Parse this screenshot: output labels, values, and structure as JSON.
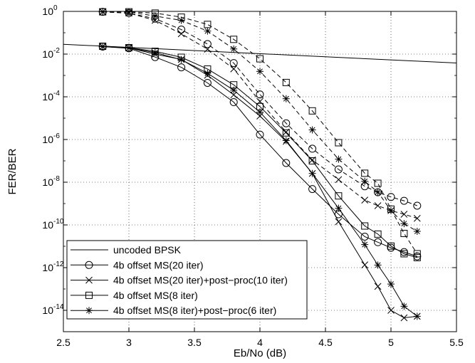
{
  "chart_data": {
    "type": "line",
    "xlabel": "Eb/No (dB)",
    "ylabel": "FER/BER",
    "xlim": [
      2.5,
      5.5
    ],
    "ylim_log10": [
      -15,
      0
    ],
    "yscale": "log",
    "grid": "dotted",
    "legend_position": "bottom-left",
    "x_ticks": [
      "2.5",
      "3",
      "3.5",
      "4",
      "4.5",
      "5",
      "5.5"
    ],
    "y_ticks": [
      {
        "exp": 0,
        "label": "10",
        "sup": "0"
      },
      {
        "exp": -2,
        "label": "10",
        "sup": "-2"
      },
      {
        "exp": -4,
        "label": "10",
        "sup": "-4"
      },
      {
        "exp": -6,
        "label": "10",
        "sup": "-6"
      },
      {
        "exp": -8,
        "label": "10",
        "sup": "-8"
      },
      {
        "exp": -10,
        "label": "10",
        "sup": "-10"
      },
      {
        "exp": -12,
        "label": "10",
        "sup": "-12"
      },
      {
        "exp": -14,
        "label": "10",
        "sup": "-14"
      }
    ],
    "legend": [
      {
        "label": "uncoded BPSK",
        "marker": "none"
      },
      {
        "label": "4b offset MS(20 iter)",
        "marker": "circle"
      },
      {
        "label": "4b offset MS(20 iter)+post−proc(10 iter)",
        "marker": "x"
      },
      {
        "label": "4b offset MS(8 iter)",
        "marker": "square"
      },
      {
        "label": "4b offset MS(8 iter)+post−proc(6 iter)",
        "marker": "star"
      }
    ],
    "series": [
      {
        "id": "uncoded",
        "metric": "BER",
        "marker": "none",
        "dash": false,
        "x": [
          2.5,
          5.5
        ],
        "y": [
          0.0288,
          0.00382
        ]
      },
      {
        "id": "ms20_fer",
        "metric": "FER",
        "marker": "circle",
        "dash": true,
        "x": [
          2.8,
          3.0,
          3.2,
          3.4,
          3.6,
          3.8,
          4.0,
          4.2,
          4.4,
          4.6,
          4.8,
          4.9,
          5.0,
          5.1,
          5.2
        ],
        "y": [
          0.955,
          0.832,
          0.457,
          0.141,
          0.0295,
          0.0038,
          0.000129,
          5.75e-06,
          3.72e-07,
          3.98e-08,
          6.46e-09,
          3.39e-09,
          2.04e-09,
          1.35e-09,
          7.94e-10
        ]
      },
      {
        "id": "ms20_ber",
        "metric": "BER",
        "marker": "circle",
        "dash": false,
        "x": [
          2.8,
          3.0,
          3.2,
          3.4,
          3.6,
          3.8,
          4.0,
          4.2,
          4.4,
          4.6,
          4.8,
          4.9,
          5.0,
          5.1,
          5.2
        ],
        "y": [
          0.0224,
          0.0186,
          0.00724,
          0.0024,
          0.000447,
          5.62e-05,
          1.7e-06,
          7.94e-08,
          4.79e-09,
          3.16e-10,
          2.82e-11,
          1.55e-11,
          8.51e-12,
          5.37e-12,
          3.39e-12
        ]
      },
      {
        "id": "ms20pp_fer",
        "metric": "FER",
        "marker": "x",
        "dash": true,
        "x": [
          2.8,
          3.0,
          3.2,
          3.4,
          3.6,
          3.8,
          4.0,
          4.2,
          4.4,
          4.6,
          4.8,
          4.9,
          5.0,
          5.1,
          5.2
        ],
        "y": [
          0.955,
          0.832,
          0.38,
          0.0891,
          0.017,
          0.00204,
          6.03e-05,
          2.24e-06,
          1.1e-07,
          1.32e-08,
          1.45e-09,
          7.94e-10,
          4.68e-10,
          3.16e-10,
          2.04e-10
        ]
      },
      {
        "id": "ms20pp_ber",
        "metric": "BER",
        "marker": "x",
        "dash": false,
        "x": [
          2.8,
          3.0,
          3.2,
          3.4,
          3.6,
          3.8,
          4.0,
          4.2,
          4.4,
          4.6,
          4.8,
          4.9,
          5.0,
          5.1,
          5.2
        ],
        "y": [
          0.0224,
          0.0195,
          0.01,
          0.0056,
          0.00102,
          0.000123,
          1.26e-05,
          8.13e-07,
          2.57e-08,
          1.41e-10,
          1.35e-12,
          1.32e-13,
          1e-14,
          4.47e-15,
          5.25e-15
        ]
      },
      {
        "id": "ms8_fer",
        "metric": "FER",
        "marker": "square",
        "dash": true,
        "x": [
          2.8,
          3.0,
          3.2,
          3.4,
          3.6,
          3.8,
          4.0,
          4.2,
          4.4,
          4.6,
          4.8,
          4.9,
          5.0,
          5.1,
          5.2
        ],
        "y": [
          0.955,
          0.955,
          0.832,
          0.537,
          0.245,
          0.049,
          0.00603,
          0.000468,
          2.19e-05,
          7.08e-07,
          2.63e-08,
          8.91e-09,
          5.5e-10,
          3.98e-11,
          4.47e-12
        ]
      },
      {
        "id": "ms8_ber",
        "metric": "BER",
        "marker": "square",
        "dash": false,
        "x": [
          2.8,
          3.0,
          3.2,
          3.4,
          3.6,
          3.8,
          4.0,
          4.2,
          4.4,
          4.6,
          4.8,
          4.9,
          5.0,
          5.1,
          5.2
        ],
        "y": [
          0.0234,
          0.02,
          0.0135,
          0.00708,
          0.002,
          0.000363,
          3.47e-05,
          2.04e-06,
          1e-07,
          2.29e-09,
          8.91e-11,
          3.72e-11,
          1.02e-11,
          4.47e-12,
          2.95e-12
        ]
      },
      {
        "id": "ms8pp_fer",
        "metric": "FER",
        "marker": "star",
        "dash": true,
        "x": [
          2.8,
          3.0,
          3.2,
          3.4,
          3.6,
          3.8,
          4.0,
          4.2,
          4.4,
          4.6,
          4.8,
          4.9,
          5.0,
          5.1,
          5.2
        ],
        "y": [
          0.955,
          0.955,
          0.603,
          0.38,
          0.12,
          0.0174,
          0.00155,
          8.13e-05,
          2.82e-06,
          1.2e-07,
          1.1e-08,
          3.47e-09,
          4.68e-10,
          1.15e-10,
          5.01e-11
        ]
      },
      {
        "id": "ms8pp_ber",
        "metric": "BER",
        "marker": "star",
        "dash": false,
        "x": [
          2.8,
          3.0,
          3.2,
          3.4,
          3.6,
          3.8,
          4.0,
          4.2,
          4.4,
          4.6,
          4.8,
          4.9,
          5.0,
          5.1,
          5.2
        ],
        "y": [
          0.0224,
          0.0195,
          0.0117,
          0.0055,
          0.00126,
          0.000204,
          1.91e-05,
          8.91e-07,
          2.57e-08,
          6.03e-10,
          1.2e-11,
          1.32e-12,
          1.7e-13,
          1.55e-14,
          5.25e-15
        ]
      }
    ]
  }
}
